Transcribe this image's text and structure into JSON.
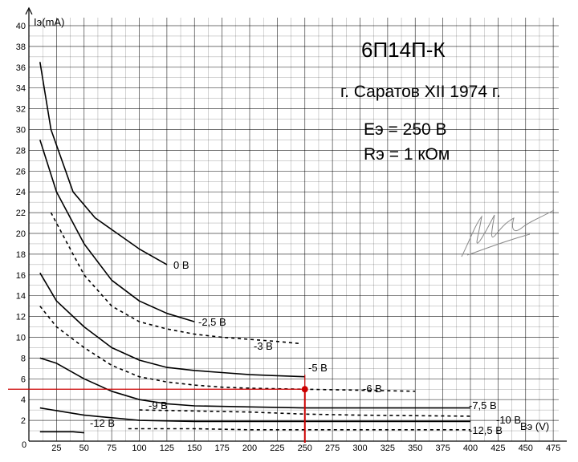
{
  "title": "6П14П-К",
  "subtitle": "г. Саратов XII 1974 г.",
  "params": [
    "Eэ = 250 В",
    "Rэ = 1 кОм"
  ],
  "chart_data": {
    "type": "line",
    "title": "6П14П-К",
    "xlabel": "Bэ (V)",
    "ylabel": "Iэ(mA)",
    "xlim": [
      0,
      480
    ],
    "ylim": [
      0,
      40
    ],
    "x_ticks": [
      0,
      25,
      50,
      75,
      100,
      125,
      150,
      175,
      200,
      225,
      250,
      275,
      300,
      325,
      350,
      375,
      400,
      425,
      450,
      475
    ],
    "y_ticks": [
      2,
      4,
      6,
      8,
      10,
      12,
      14,
      16,
      18,
      20,
      22,
      24,
      26,
      28,
      30,
      32,
      34,
      36,
      38,
      40
    ],
    "grid": true,
    "series": [
      {
        "name": "0 В",
        "dashed": false,
        "points": [
          [
            10,
            36.5
          ],
          [
            20,
            30
          ],
          [
            40,
            24
          ],
          [
            60,
            21.5
          ],
          [
            80,
            20
          ],
          [
            100,
            18.5
          ],
          [
            125,
            17
          ]
        ]
      },
      {
        "name": "-2,5 В",
        "dashed": false,
        "points": [
          [
            10,
            29
          ],
          [
            25,
            24
          ],
          [
            50,
            19
          ],
          [
            75,
            15.5
          ],
          [
            100,
            13.5
          ],
          [
            125,
            12.3
          ],
          [
            150,
            11.5
          ]
        ]
      },
      {
        "name": "-3 В",
        "dashed": true,
        "points": [
          [
            20,
            22
          ],
          [
            35,
            19
          ],
          [
            50,
            16
          ],
          [
            75,
            13
          ],
          [
            100,
            11.5
          ],
          [
            125,
            10.8
          ],
          [
            150,
            10.3
          ],
          [
            175,
            10
          ],
          [
            200,
            9.8
          ],
          [
            225,
            9.6
          ],
          [
            245,
            9.4
          ]
        ]
      },
      {
        "name": "-5 В",
        "dashed": false,
        "points": [
          [
            10,
            16.2
          ],
          [
            25,
            13.5
          ],
          [
            50,
            11
          ],
          [
            75,
            9
          ],
          [
            100,
            7.8
          ],
          [
            125,
            7.1
          ],
          [
            150,
            6.8
          ],
          [
            175,
            6.6
          ],
          [
            200,
            6.4
          ],
          [
            225,
            6.3
          ],
          [
            250,
            6.2
          ]
        ]
      },
      {
        "name": "-6 В",
        "dashed": true,
        "points": [
          [
            10,
            13
          ],
          [
            25,
            11
          ],
          [
            50,
            9
          ],
          [
            75,
            7.3
          ],
          [
            100,
            6.2
          ],
          [
            125,
            5.7
          ],
          [
            150,
            5.4
          ],
          [
            175,
            5.2
          ],
          [
            200,
            5.1
          ],
          [
            250,
            5
          ],
          [
            300,
            4.9
          ],
          [
            350,
            4.8
          ]
        ]
      },
      {
        "name": "-7,5 В",
        "dashed": false,
        "points": [
          [
            10,
            8
          ],
          [
            25,
            7.5
          ],
          [
            50,
            6
          ],
          [
            75,
            4.8
          ],
          [
            100,
            4
          ],
          [
            125,
            3.6
          ],
          [
            150,
            3.4
          ],
          [
            200,
            3.3
          ],
          [
            250,
            3.2
          ],
          [
            300,
            3.2
          ],
          [
            350,
            3.2
          ],
          [
            400,
            3.2
          ]
        ]
      },
      {
        "name": "-9 В",
        "dashed": true,
        "points": [
          [
            100,
            3
          ],
          [
            150,
            2.9
          ],
          [
            200,
            2.8
          ],
          [
            250,
            2.6
          ],
          [
            300,
            2.5
          ],
          [
            400,
            2.4
          ]
        ]
      },
      {
        "name": "-10 В",
        "dashed": false,
        "points": [
          [
            10,
            3.2
          ],
          [
            50,
            2.5
          ],
          [
            100,
            2
          ],
          [
            150,
            1.9
          ],
          [
            200,
            1.9
          ],
          [
            300,
            1.9
          ],
          [
            400,
            1.9
          ]
        ]
      },
      {
        "name": "-12 В",
        "dashed": false,
        "points": [
          [
            10,
            0.9
          ],
          [
            40,
            0.9
          ],
          [
            50,
            0.8
          ]
        ]
      },
      {
        "name": "-12,5 В",
        "dashed": true,
        "points": [
          [
            90,
            1.2
          ],
          [
            150,
            1.2
          ],
          [
            200,
            1.1
          ],
          [
            300,
            1.1
          ],
          [
            400,
            1.1
          ]
        ]
      }
    ],
    "operating_point": {
      "x": 250,
      "y": 5
    },
    "annotations": [
      "0 В",
      "-2,5 В",
      "-3 В",
      "-5 В",
      "-6 В",
      "-7,5 В",
      "-9 В",
      "-10 В",
      "-12 В",
      "-12,5 В"
    ],
    "colors": {
      "curves": "#000000",
      "grid": "#000000",
      "marker": "#cc0000"
    }
  }
}
